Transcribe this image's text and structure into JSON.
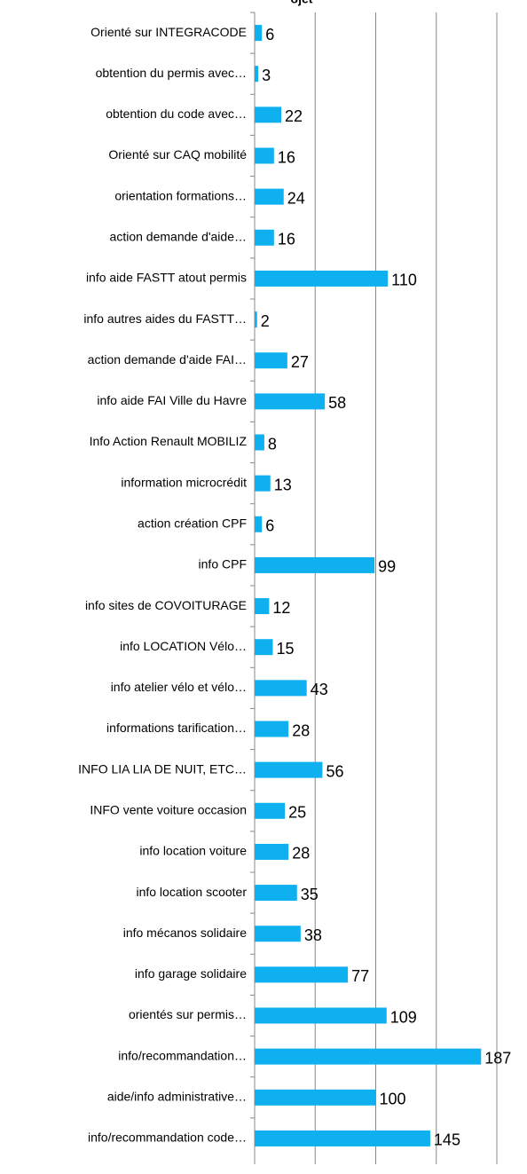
{
  "chart_data": {
    "type": "bar",
    "orientation": "horizontal",
    "title": "ojet",
    "categories": [
      "Orienté sur INTEGRACODE",
      "obtention du permis avec…",
      "obtention du code avec…",
      "Orienté sur CAQ mobilité",
      "orientation formations…",
      "action demande d'aide…",
      "info aide FASTT atout permis",
      "info autres aides du FASTT…",
      "action demande d'aide FAI…",
      "info aide FAI Ville du Havre",
      "Info Action Renault MOBILIZ",
      "information microcrédit",
      "action création CPF",
      "info CPF",
      "info sites de COVOITURAGE",
      "info LOCATION Vélo…",
      "info atelier vélo et vélo…",
      "informations tarification…",
      "INFO LIA LIA DE NUIT, ETC…",
      "INFO vente voiture occasion",
      "info location voiture",
      "info location scooter",
      "info mécanos solidaire",
      "info garage solidaire",
      "orientés sur permis…",
      "info/recommandation…",
      "aide/info administrative…",
      "info/recommandation code…"
    ],
    "values": [
      6,
      3,
      22,
      16,
      24,
      16,
      110,
      2,
      27,
      58,
      8,
      13,
      6,
      99,
      12,
      15,
      43,
      28,
      56,
      25,
      28,
      35,
      38,
      77,
      109,
      187,
      100,
      145
    ],
    "color": "#0fb0f0",
    "xlim": [
      0,
      200
    ],
    "xticks": [
      0,
      50,
      100,
      150,
      200
    ],
    "grid": true
  }
}
